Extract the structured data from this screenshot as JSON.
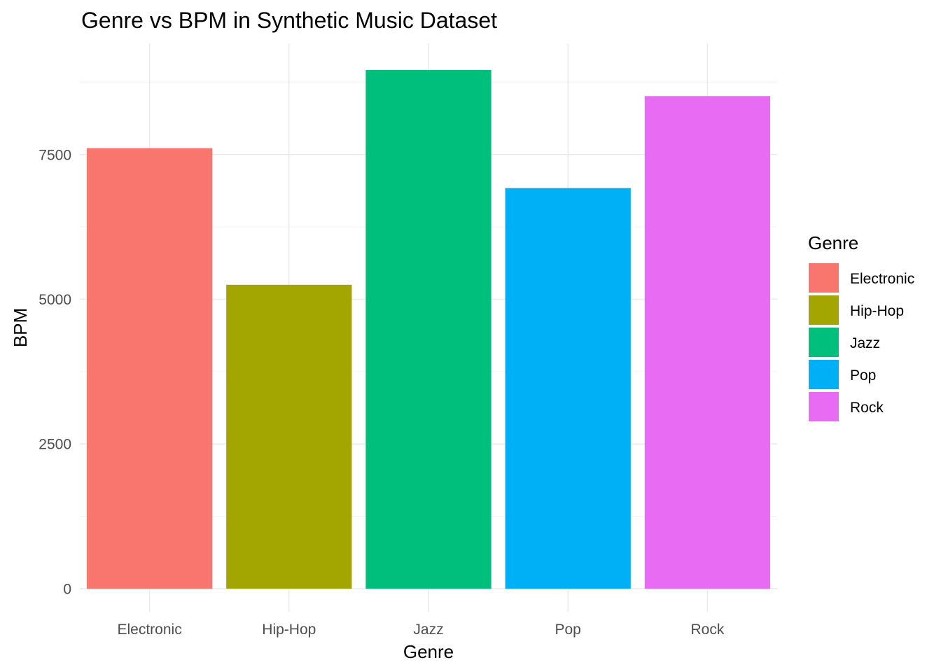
{
  "chart_data": {
    "type": "bar",
    "title": "Genre vs BPM in Synthetic Music Dataset",
    "xlabel": "Genre",
    "ylabel": "BPM",
    "categories": [
      "Electronic",
      "Hip-Hop",
      "Jazz",
      "Pop",
      "Rock"
    ],
    "values": [
      7610,
      5250,
      8960,
      6920,
      8510
    ],
    "colors": [
      "#F8766D",
      "#A3A500",
      "#00BF7D",
      "#00B0F6",
      "#E76BF3"
    ],
    "ylim": [
      -400,
      9420
    ],
    "yticks": [
      0,
      2500,
      5000,
      7500
    ],
    "ytick_labels": [
      "0",
      "2500",
      "5000",
      "7500"
    ],
    "grid": true,
    "legend": {
      "title": "Genre",
      "position": "right",
      "entries": [
        "Electronic",
        "Hip-Hop",
        "Jazz",
        "Pop",
        "Rock"
      ]
    }
  }
}
